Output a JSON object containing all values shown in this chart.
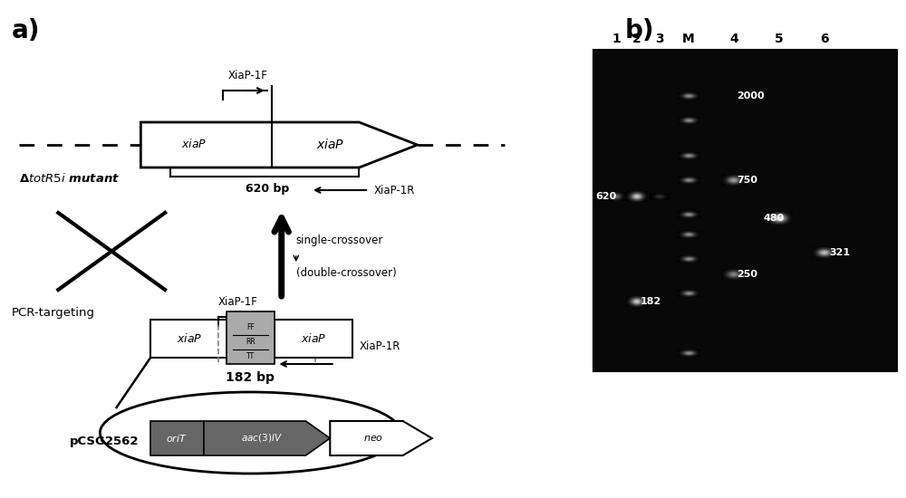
{
  "panel_a_label": "a)",
  "panel_b_label": "b)",
  "label_fontsize": 20,
  "bg_color": "#ffffff",
  "gel_lane_labels": [
    "1",
    "2",
    "3",
    "M",
    "4",
    "5",
    "6"
  ]
}
